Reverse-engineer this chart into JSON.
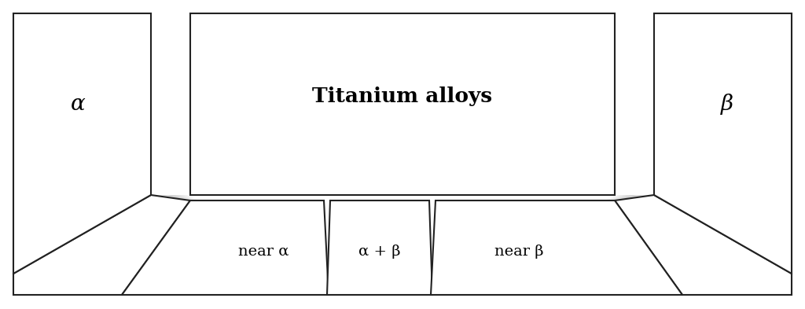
{
  "title_text": "Titanium alloys",
  "label_alpha": "α",
  "label_beta": "β",
  "label_near_alpha": "near α",
  "label_alpha_beta": "α + β",
  "label_near_beta": "near β",
  "bg_color": "#ffffff",
  "box_fill": "#ffffff",
  "box_edge": "#222222",
  "shadow_light": "#f0f0f0",
  "shadow_dark": "#aaaaaa",
  "line_width": 1.5,
  "fig_width": 10.24,
  "fig_height": 3.93,
  "dpi": 100
}
